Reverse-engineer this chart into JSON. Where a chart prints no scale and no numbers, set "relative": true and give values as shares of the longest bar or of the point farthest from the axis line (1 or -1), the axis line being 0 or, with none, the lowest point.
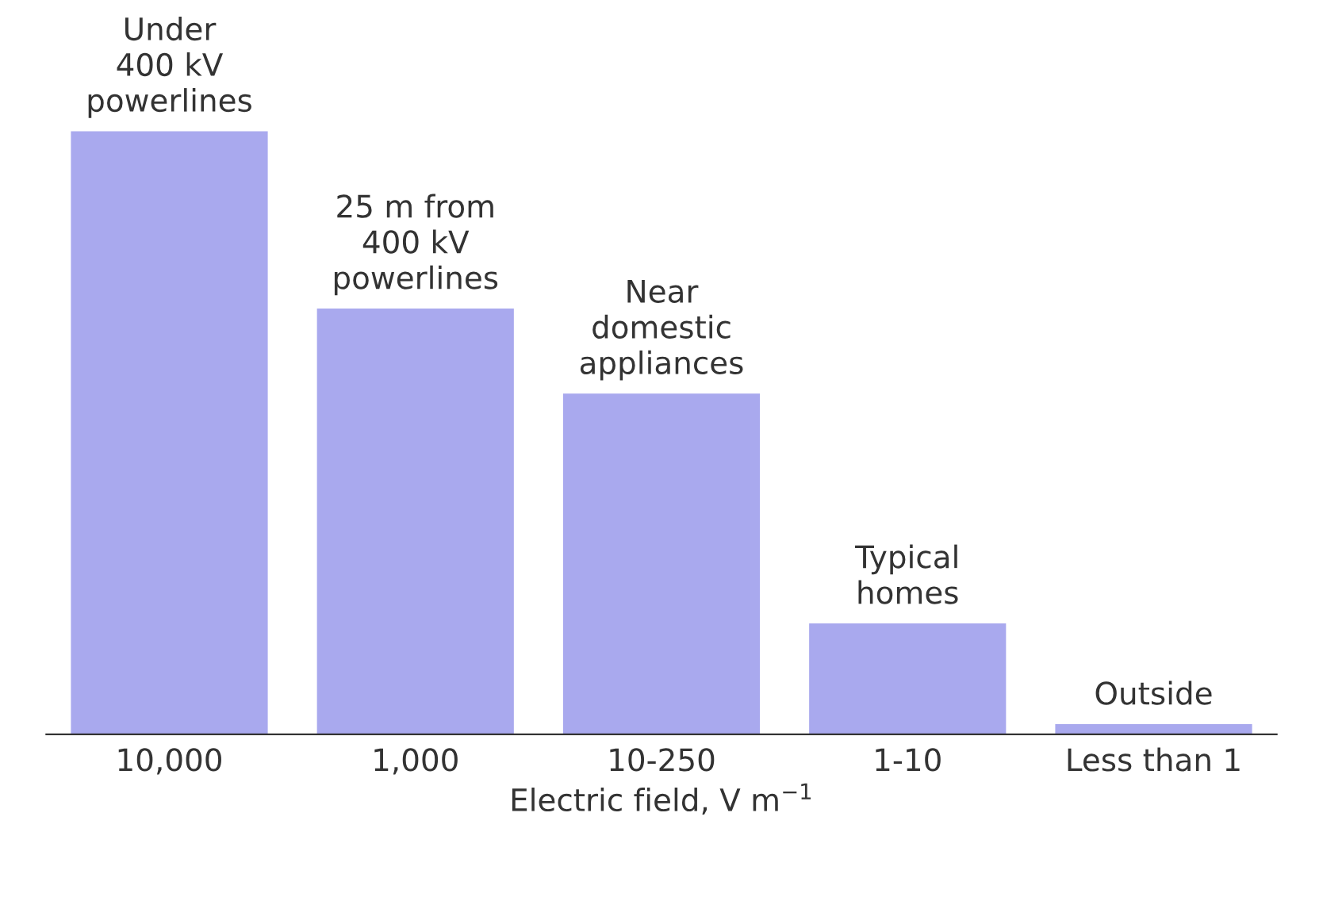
{
  "chart_data": {
    "type": "bar",
    "relative": true,
    "xlabel": "Electric field, V m$^{−1}$",
    "categories": [
      "10,000",
      "1,000",
      "10-250",
      "1-10",
      "Less than 1"
    ],
    "values": [
      1,
      0.706,
      0.565,
      0.184,
      0.017
    ],
    "color": "#a9a9ee",
    "annotations": [
      {
        "text": "Under\n400 kV\npowerlines",
        "x": "10,000",
        "y": 1
      },
      {
        "text": "25 m from\n400 kV\npowerlines",
        "x": "1,000",
        "y": 0.706
      },
      {
        "text": "Near\ndomestic\nappliances",
        "x": "10-250",
        "y": 0.565
      },
      {
        "text": "Typical\nhomes",
        "x": "1-10",
        "y": 0.184
      },
      {
        "text": "Outside",
        "x": "Less than 1",
        "y": 0.017
      }
    ],
    "grid": false,
    "legend": false
  }
}
